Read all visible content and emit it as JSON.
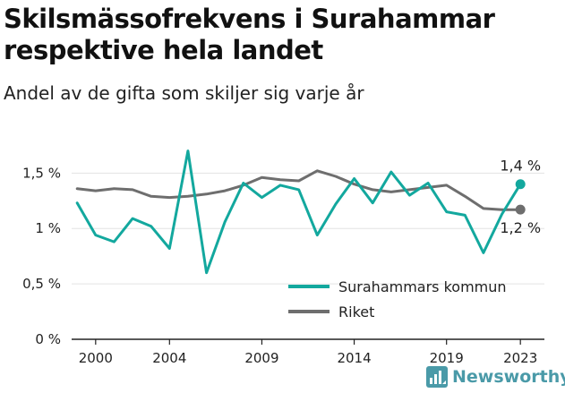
{
  "title": "Skilsmässofrekvens i Surahammar respektive hela landet",
  "subtitle": "Andel av de gifta som skiljer sig varje år",
  "brand": {
    "name": "Newsworthy",
    "icon": "newsworthy-logo-icon",
    "color": "#4a9aa8"
  },
  "chart_data": {
    "type": "line",
    "x_ticks": [
      2000,
      2004,
      2009,
      2014,
      2019,
      2023
    ],
    "y_ticks": [
      {
        "value": 0,
        "label": "0 %"
      },
      {
        "value": 0.5,
        "label": "0,5 %"
      },
      {
        "value": 1.0,
        "label": "1 %"
      },
      {
        "value": 1.5,
        "label": "1,5 %"
      }
    ],
    "xlim": [
      1998.7,
      2024.3
    ],
    "ylim": [
      0,
      1.85
    ],
    "grid": "horizontal",
    "legend_position": "bottom-right",
    "x": [
      1999,
      2000,
      2001,
      2002,
      2003,
      2004,
      2005,
      2006,
      2007,
      2008,
      2009,
      2010,
      2011,
      2012,
      2013,
      2014,
      2015,
      2016,
      2017,
      2018,
      2019,
      2020,
      2021,
      2022,
      2023
    ],
    "series": [
      {
        "name": "Surahammars kommun",
        "color": "#13a89e",
        "values": [
          1.23,
          0.94,
          0.88,
          1.09,
          1.02,
          0.82,
          1.7,
          0.6,
          1.06,
          1.41,
          1.28,
          1.39,
          1.35,
          0.94,
          1.22,
          1.45,
          1.23,
          1.51,
          1.3,
          1.41,
          1.15,
          1.12,
          0.78,
          1.13,
          1.4
        ],
        "end_label": "1,4 %"
      },
      {
        "name": "Riket",
        "color": "#6e6e6e",
        "values": [
          1.36,
          1.34,
          1.36,
          1.35,
          1.29,
          1.28,
          1.29,
          1.31,
          1.34,
          1.39,
          1.46,
          1.44,
          1.43,
          1.52,
          1.47,
          1.4,
          1.35,
          1.33,
          1.35,
          1.37,
          1.39,
          1.29,
          1.18,
          1.17,
          1.17
        ],
        "end_label": "1,2 %"
      }
    ]
  }
}
